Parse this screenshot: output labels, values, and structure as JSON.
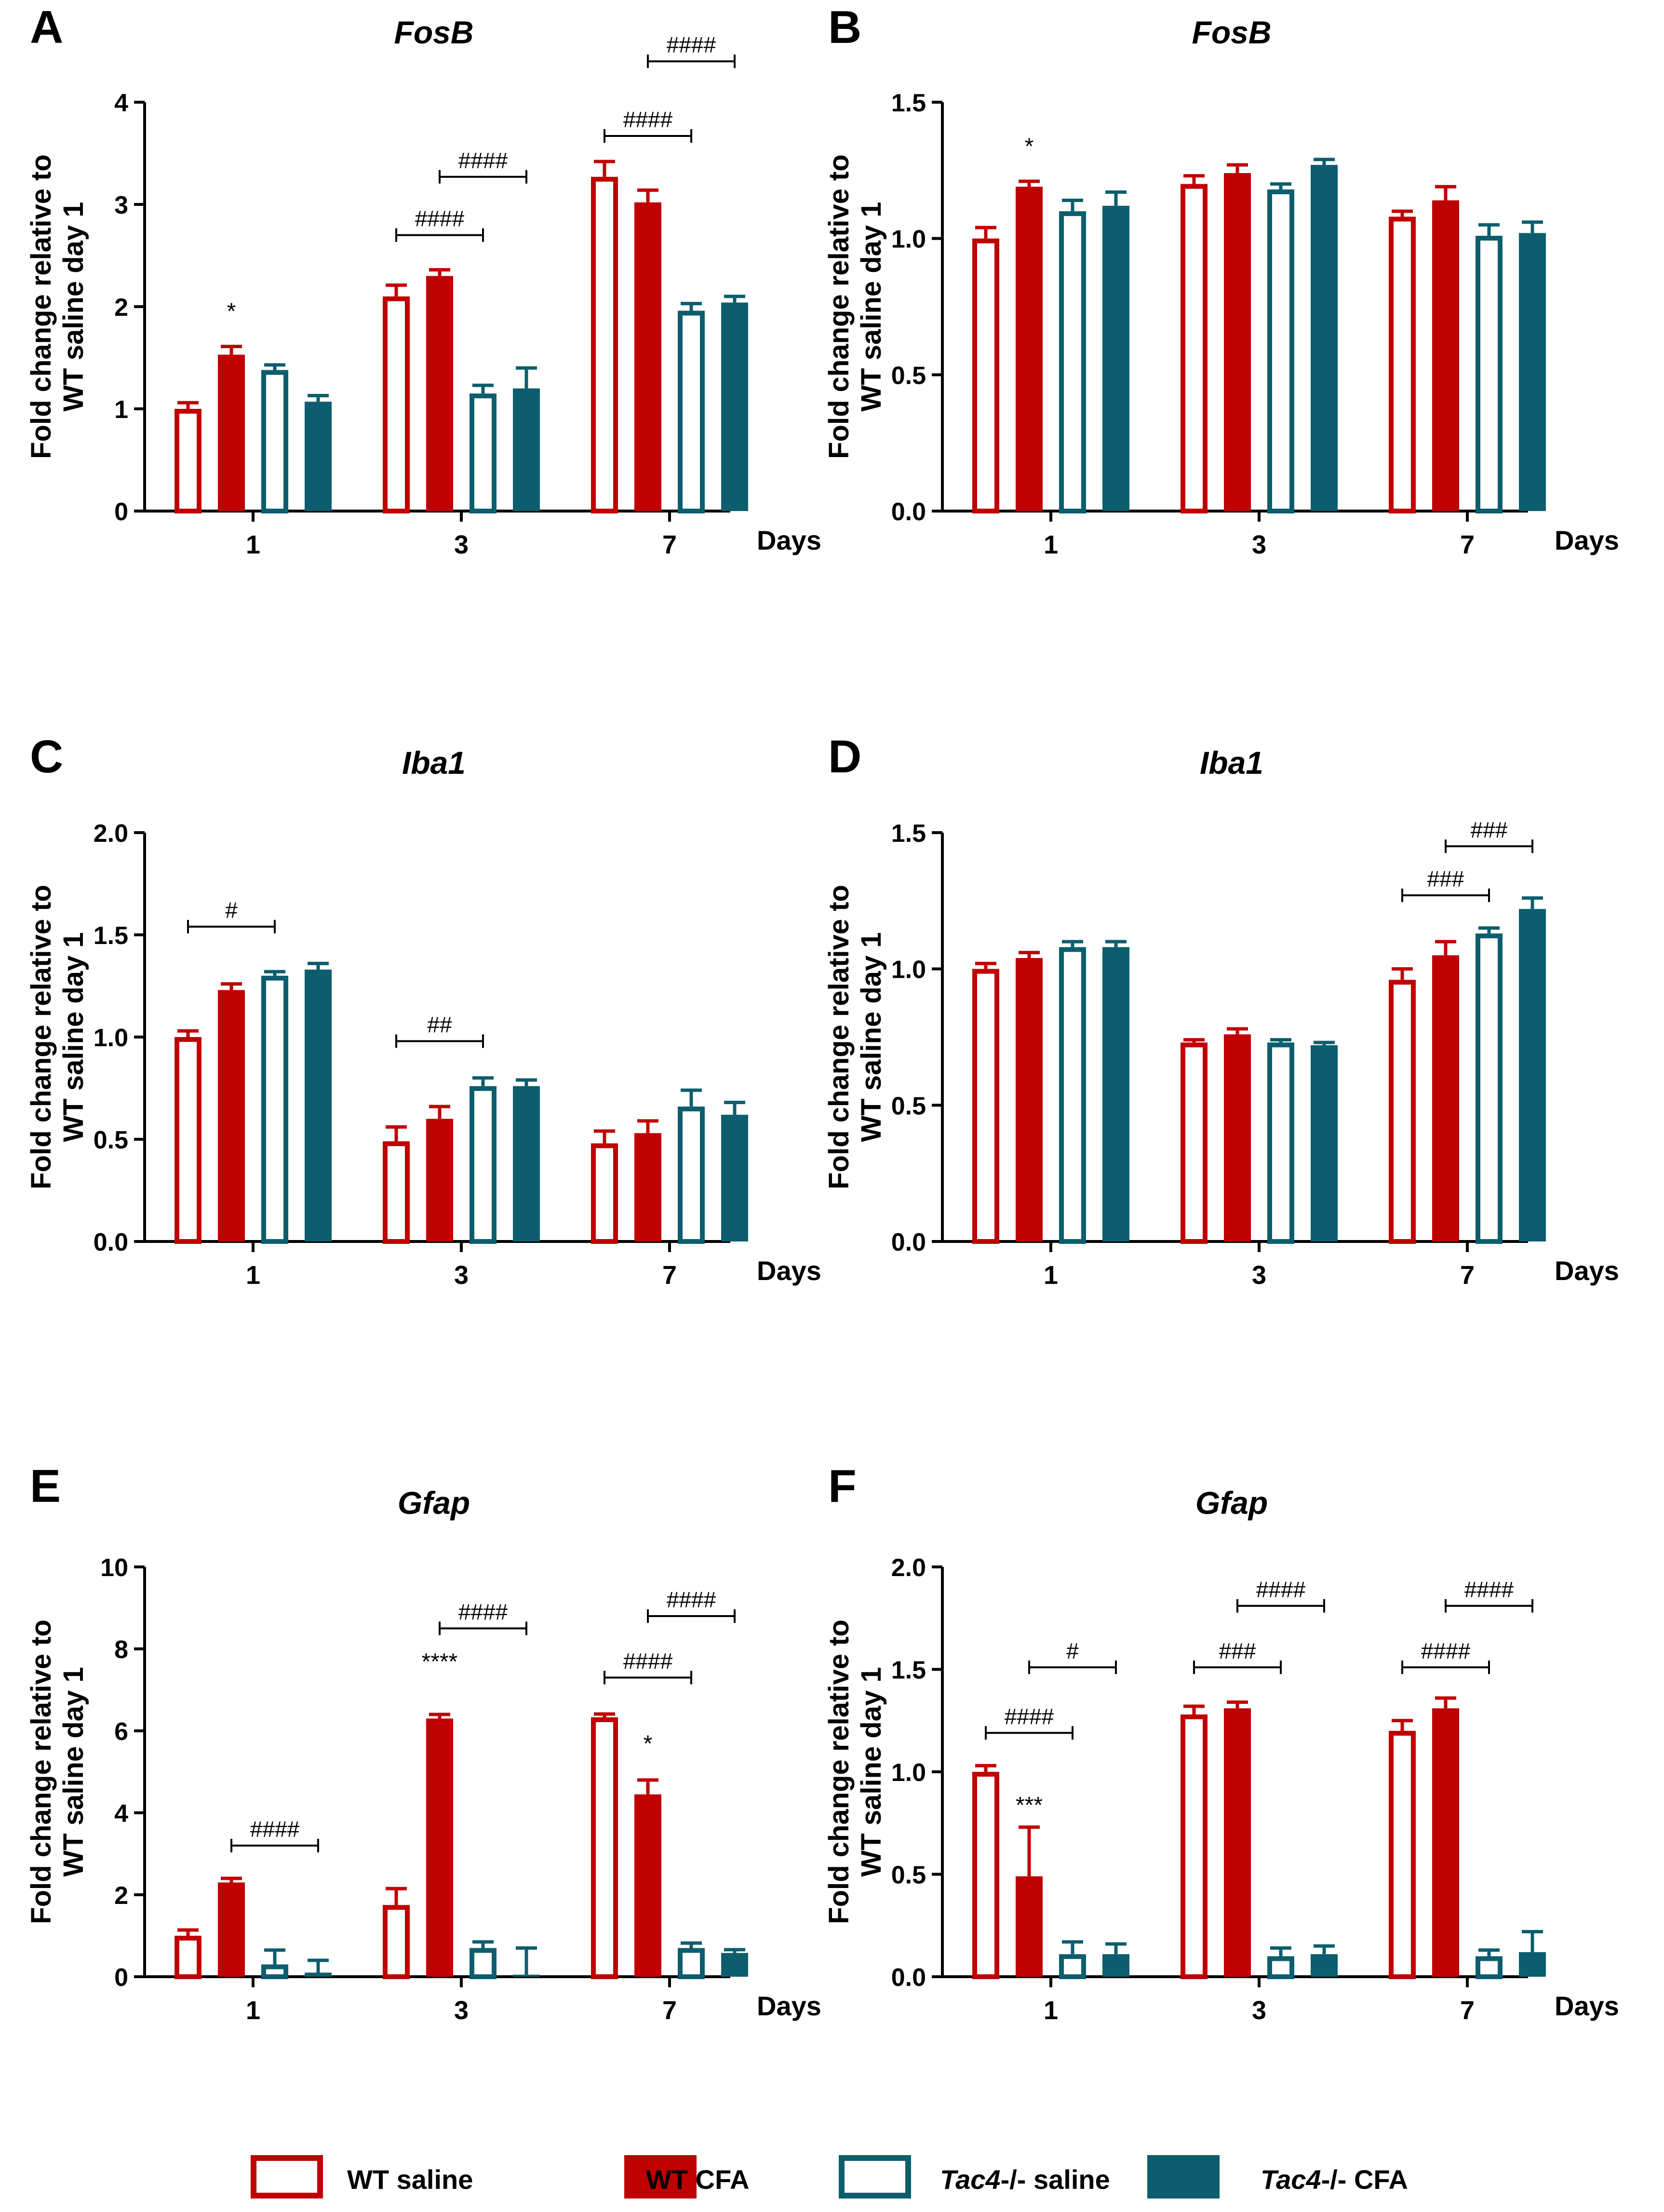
{
  "figure": {
    "x_axis_unit": "Days",
    "y_axis_label": [
      "Fold change relative to",
      "WT saline day 1"
    ],
    "series_colors": {
      "WT saline": "#c00000",
      "WT CFA": "#c00000",
      "Tac4-/- saline": "#0c5e6e",
      "Tac4-/- CFA": "#0c5e6e"
    }
  },
  "legend": [
    {
      "name": "WT saline",
      "prefix": "",
      "italic": "",
      "suffix": "WT saline",
      "filled": false,
      "color": "#c00000"
    },
    {
      "name": "WT CFA",
      "prefix": "",
      "italic": "",
      "suffix": "WT CFA",
      "filled": true,
      "color": "#c00000"
    },
    {
      "name": "Tac4-/- saline",
      "prefix": "",
      "italic": "Tac4",
      "suffix": "-/- saline",
      "filled": false,
      "color": "#0c5e6e"
    },
    {
      "name": "Tac4-/- CFA",
      "prefix": "",
      "italic": "Tac4",
      "suffix": "-/- CFA",
      "filled": true,
      "color": "#0c5e6e"
    }
  ],
  "chart_data": [
    {
      "panel": "A",
      "type": "bar",
      "title": "FosB",
      "categories": [
        "1",
        "3",
        "7"
      ],
      "xlabel": "Days",
      "ylabel": "Fold change relative to WT saline day 1",
      "ylim": [
        0,
        4
      ],
      "yticks": [
        0,
        1,
        2,
        3,
        4
      ],
      "tick_decimals": 0,
      "series": [
        {
          "name": "WT saline",
          "values": [
            1.0,
            2.1,
            3.27
          ],
          "errors": [
            0.06,
            0.11,
            0.15
          ]
        },
        {
          "name": "WT CFA",
          "values": [
            1.53,
            2.3,
            3.02
          ],
          "errors": [
            0.08,
            0.06,
            0.12
          ]
        },
        {
          "name": "Tac4-/- saline",
          "values": [
            1.38,
            1.15,
            1.96
          ],
          "errors": [
            0.05,
            0.08,
            0.07
          ]
        },
        {
          "name": "Tac4-/- CFA",
          "values": [
            1.07,
            1.2,
            2.04
          ],
          "errors": [
            0.06,
            0.2,
            0.06
          ]
        }
      ],
      "stars": [
        {
          "group": 0,
          "series": 1,
          "text": "*",
          "y": 1.88
        }
      ],
      "brackets": [
        {
          "group": 1,
          "from": 0,
          "to": 2,
          "y": 2.7,
          "text": "####"
        },
        {
          "group": 1,
          "from": 1,
          "to": 3,
          "y": 3.27,
          "text": "####"
        },
        {
          "group": 2,
          "from": 0,
          "to": 2,
          "y": 3.67,
          "text": "####"
        },
        {
          "group": 2,
          "from": 1,
          "to": 3,
          "y": 4.4,
          "text": "####"
        }
      ]
    },
    {
      "panel": "B",
      "type": "bar",
      "title": "FosB",
      "categories": [
        "1",
        "3",
        "7"
      ],
      "xlabel": "Days",
      "ylabel": "Fold change relative to WT saline day 1",
      "ylim": [
        0,
        1.5
      ],
      "yticks": [
        0,
        0.5,
        1.0,
        1.5
      ],
      "tick_decimals": 1,
      "series": [
        {
          "name": "WT saline",
          "values": [
            1.0,
            1.2,
            1.08
          ],
          "errors": [
            0.04,
            0.03,
            0.02
          ]
        },
        {
          "name": "WT CFA",
          "values": [
            1.19,
            1.24,
            1.14
          ],
          "errors": [
            0.02,
            0.03,
            0.05
          ]
        },
        {
          "name": "Tac4-/- saline",
          "values": [
            1.1,
            1.18,
            1.01
          ],
          "errors": [
            0.04,
            0.02,
            0.04
          ]
        },
        {
          "name": "Tac4-/- CFA",
          "values": [
            1.12,
            1.27,
            1.02
          ],
          "errors": [
            0.05,
            0.02,
            0.04
          ]
        }
      ],
      "stars": [
        {
          "group": 0,
          "series": 1,
          "text": "*",
          "y": 1.31
        }
      ],
      "brackets": []
    },
    {
      "panel": "C",
      "type": "bar",
      "title": "Iba1",
      "categories": [
        "1",
        "3",
        "7"
      ],
      "xlabel": "Days",
      "ylabel": "Fold change relative to WT saline day 1",
      "ylim": [
        0,
        2.0
      ],
      "yticks": [
        0,
        0.5,
        1.0,
        1.5,
        2.0
      ],
      "tick_decimals": 1,
      "series": [
        {
          "name": "WT saline",
          "values": [
            1.0,
            0.49,
            0.48
          ],
          "errors": [
            0.03,
            0.07,
            0.06
          ]
        },
        {
          "name": "WT CFA",
          "values": [
            1.23,
            0.6,
            0.53
          ],
          "errors": [
            0.03,
            0.06,
            0.06
          ]
        },
        {
          "name": "Tac4-/- saline",
          "values": [
            1.3,
            0.76,
            0.66
          ],
          "errors": [
            0.02,
            0.04,
            0.08
          ]
        },
        {
          "name": "Tac4-/- CFA",
          "values": [
            1.33,
            0.76,
            0.62
          ],
          "errors": [
            0.03,
            0.03,
            0.06
          ]
        }
      ],
      "stars": [],
      "brackets": [
        {
          "group": 0,
          "from": 0,
          "to": 2,
          "y": 1.54,
          "text": "#"
        },
        {
          "group": 1,
          "from": 0,
          "to": 2,
          "y": 0.98,
          "text": "##"
        }
      ]
    },
    {
      "panel": "D",
      "type": "bar",
      "title": "Iba1",
      "categories": [
        "1",
        "3",
        "7"
      ],
      "xlabel": "Days",
      "ylabel": "Fold change relative to WT saline day 1",
      "ylim": [
        0,
        1.5
      ],
      "yticks": [
        0,
        0.5,
        1.0,
        1.5
      ],
      "tick_decimals": 1,
      "series": [
        {
          "name": "WT saline",
          "values": [
            1.0,
            0.73,
            0.96
          ],
          "errors": [
            0.02,
            0.01,
            0.04
          ]
        },
        {
          "name": "WT CFA",
          "values": [
            1.04,
            0.76,
            1.05
          ],
          "errors": [
            0.02,
            0.02,
            0.05
          ]
        },
        {
          "name": "Tac4-/- saline",
          "values": [
            1.08,
            0.73,
            1.13
          ],
          "errors": [
            0.02,
            0.01,
            0.02
          ]
        },
        {
          "name": "Tac4-/- CFA",
          "values": [
            1.08,
            0.72,
            1.22
          ],
          "errors": [
            0.02,
            0.01,
            0.04
          ]
        }
      ],
      "stars": [],
      "brackets": [
        {
          "group": 2,
          "from": 0,
          "to": 2,
          "y": 1.27,
          "text": "###"
        },
        {
          "group": 2,
          "from": 1,
          "to": 3,
          "y": 1.45,
          "text": "###"
        }
      ]
    },
    {
      "panel": "E",
      "type": "bar",
      "title": "Gfap",
      "categories": [
        "1",
        "3",
        "7"
      ],
      "xlabel": "Days",
      "ylabel": "Fold change relative to WT saline day 1",
      "ylim": [
        0,
        10
      ],
      "yticks": [
        0,
        2,
        4,
        6,
        8,
        10
      ],
      "tick_decimals": 0,
      "series": [
        {
          "name": "WT saline",
          "values": [
            1.0,
            1.75,
            6.33
          ],
          "errors": [
            0.14,
            0.4,
            0.08
          ]
        },
        {
          "name": "WT CFA",
          "values": [
            2.3,
            6.3,
            4.45
          ],
          "errors": [
            0.1,
            0.1,
            0.35
          ]
        },
        {
          "name": "Tac4-/- saline",
          "values": [
            0.3,
            0.7,
            0.7
          ],
          "errors": [
            0.35,
            0.15,
            0.12
          ]
        },
        {
          "name": "Tac4-/- CFA",
          "values": [
            0.1,
            0.05,
            0.58
          ],
          "errors": [
            0.3,
            0.65,
            0.08
          ]
        }
      ],
      "stars": [
        {
          "group": 1,
          "series": 1,
          "text": "****",
          "y": 7.5
        },
        {
          "group": 2,
          "series": 1,
          "text": "*",
          "y": 5.5
        }
      ],
      "brackets": [
        {
          "group": 0,
          "from": 1,
          "to": 3,
          "y": 3.2,
          "text": "####"
        },
        {
          "group": 1,
          "from": 1,
          "to": 3,
          "y": 8.5,
          "text": "####"
        },
        {
          "group": 2,
          "from": 0,
          "to": 2,
          "y": 7.3,
          "text": "####"
        },
        {
          "group": 2,
          "from": 1,
          "to": 3,
          "y": 8.8,
          "text": "####"
        }
      ]
    },
    {
      "panel": "F",
      "type": "bar",
      "title": "Gfap",
      "categories": [
        "1",
        "3",
        "7"
      ],
      "xlabel": "Days",
      "ylabel": "Fold change relative to WT saline day 1",
      "ylim": [
        0,
        2.0
      ],
      "yticks": [
        0,
        0.5,
        1.0,
        1.5,
        2.0
      ],
      "tick_decimals": 1,
      "series": [
        {
          "name": "WT saline",
          "values": [
            1.0,
            1.28,
            1.2
          ],
          "errors": [
            0.03,
            0.04,
            0.05
          ]
        },
        {
          "name": "WT CFA",
          "values": [
            0.49,
            1.31,
            1.31
          ],
          "errors": [
            0.24,
            0.03,
            0.05
          ]
        },
        {
          "name": "Tac4-/- saline",
          "values": [
            0.11,
            0.1,
            0.1
          ],
          "errors": [
            0.06,
            0.04,
            0.03
          ]
        },
        {
          "name": "Tac4-/- CFA",
          "values": [
            0.11,
            0.11,
            0.12
          ],
          "errors": [
            0.05,
            0.04,
            0.1
          ]
        }
      ],
      "stars": [
        {
          "group": 0,
          "series": 1,
          "text": "***",
          "y": 0.8
        }
      ],
      "brackets": [
        {
          "group": 0,
          "from": 0,
          "to": 2,
          "y": 1.19,
          "text": "####"
        },
        {
          "group": 0,
          "from": 1,
          "to": 3,
          "y": 1.51,
          "text": "#"
        },
        {
          "group": 1,
          "from": 0,
          "to": 2,
          "y": 1.51,
          "text": "###"
        },
        {
          "group": 1,
          "from": 1,
          "to": 3,
          "y": 1.81,
          "text": "####"
        },
        {
          "group": 2,
          "from": 0,
          "to": 2,
          "y": 1.51,
          "text": "####"
        },
        {
          "group": 2,
          "from": 1,
          "to": 3,
          "y": 1.81,
          "text": "####"
        }
      ]
    }
  ]
}
